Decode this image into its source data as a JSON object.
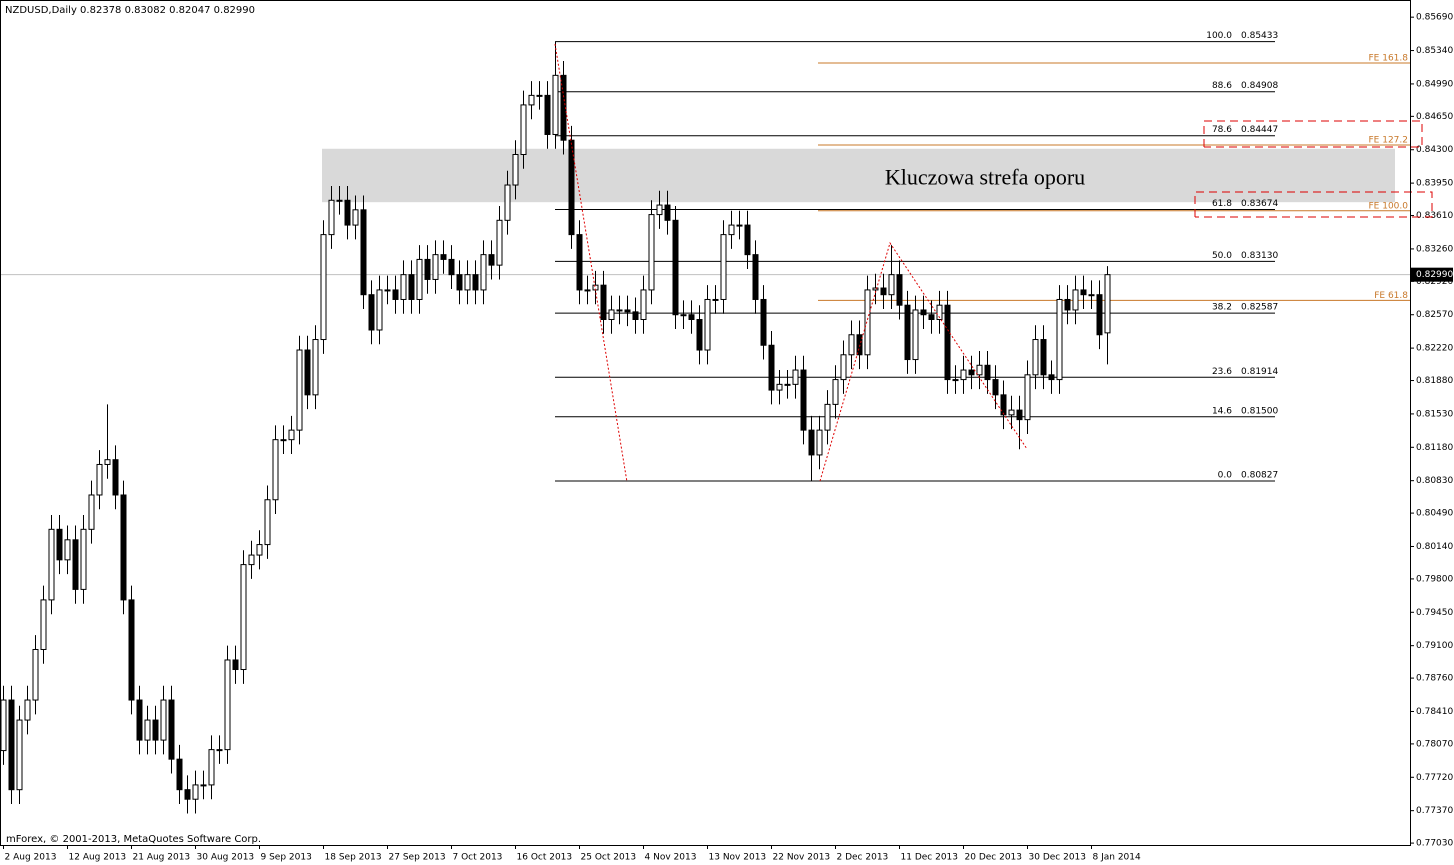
{
  "chart_data": {
    "type": "candlestick",
    "title": "NZDUSD,Daily  0.82378 0.83082 0.82047 0.82990",
    "copyright": "mForex, © 2001-2013, MetaQuotes Software Corp.",
    "up_color": "#ffffff",
    "down_color": "#000000",
    "outline_color": "#000000",
    "fib_color": "#000000",
    "fe_color": "#c8782a",
    "zone_color": "#d9d9d9",
    "xlim": [
      -0.4,
      175.9
    ],
    "ylim": [
      0.7701,
      0.8587
    ],
    "xticks": [
      {
        "value": 0,
        "label": "2 Aug 2013"
      },
      {
        "value": 8,
        "label": "12 Aug 2013"
      },
      {
        "value": 16,
        "label": "21 Aug 2013"
      },
      {
        "value": 24,
        "label": "30 Aug 2013"
      },
      {
        "value": 32,
        "label": "9 Sep 2013"
      },
      {
        "value": 40,
        "label": "18 Sep 2013"
      },
      {
        "value": 48,
        "label": "27 Sep 2013"
      },
      {
        "value": 56,
        "label": "7 Oct 2013"
      },
      {
        "value": 64,
        "label": "16 Oct 2013"
      },
      {
        "value": 72,
        "label": "25 Oct 2013"
      },
      {
        "value": 80,
        "label": "4 Nov 2013"
      },
      {
        "value": 88,
        "label": "13 Nov 2013"
      },
      {
        "value": 96,
        "label": "22 Nov 2013"
      },
      {
        "value": 104,
        "label": "2 Dec 2013"
      },
      {
        "value": 112,
        "label": "11 Dec 2013"
      },
      {
        "value": 120,
        "label": "20 Dec 2013"
      },
      {
        "value": 128,
        "label": "30 Dec 2013"
      },
      {
        "value": 136,
        "label": "8 Jan 2014"
      }
    ],
    "yticks": [
      {
        "value": 0.8569,
        "label": "0.85690"
      },
      {
        "value": 0.8534,
        "label": "0.85340"
      },
      {
        "value": 0.8499,
        "label": "0.84990"
      },
      {
        "value": 0.8465,
        "label": "0.84650"
      },
      {
        "value": 0.843,
        "label": "0.84300"
      },
      {
        "value": 0.8395,
        "label": "0.83950"
      },
      {
        "value": 0.8361,
        "label": "0.83610"
      },
      {
        "value": 0.8326,
        "label": "0.83260"
      },
      {
        "value": 0.8292,
        "label": "0.82920"
      },
      {
        "value": 0.8257,
        "label": "0.82570"
      },
      {
        "value": 0.8222,
        "label": "0.82220"
      },
      {
        "value": 0.8188,
        "label": "0.81880"
      },
      {
        "value": 0.8153,
        "label": "0.81530"
      },
      {
        "value": 0.8118,
        "label": "0.81180"
      },
      {
        "value": 0.8083,
        "label": "0.80830"
      },
      {
        "value": 0.8049,
        "label": "0.80490"
      },
      {
        "value": 0.8014,
        "label": "0.80140"
      },
      {
        "value": 0.798,
        "label": "0.79800"
      },
      {
        "value": 0.7945,
        "label": "0.79450"
      },
      {
        "value": 0.791,
        "label": "0.79100"
      },
      {
        "value": 0.7876,
        "label": "0.78760"
      },
      {
        "value": 0.7841,
        "label": "0.78410"
      },
      {
        "value": 0.7807,
        "label": "0.78070"
      },
      {
        "value": 0.7772,
        "label": "0.77720"
      },
      {
        "value": 0.7737,
        "label": "0.77370"
      },
      {
        "value": 0.7703,
        "label": "0.77030"
      }
    ],
    "current_price": {
      "value": 0.8299,
      "label": "0.82990"
    },
    "zone": {
      "label": "Kluczowa strefa oporu",
      "range": [
        0.8375,
        0.8431
      ]
    },
    "fib_levels": [
      {
        "level": "100.0",
        "value": 0.85433,
        "label": "0.85433"
      },
      {
        "level": "88.6",
        "value": 0.84908,
        "label": "0.84908"
      },
      {
        "level": "78.6",
        "value": 0.84447,
        "label": "0.84447"
      },
      {
        "level": "61.8",
        "value": 0.83674,
        "label": "0.83674"
      },
      {
        "level": "50.0",
        "value": 0.8313,
        "label": "0.83130"
      },
      {
        "level": "38.2",
        "value": 0.82587,
        "label": "0.82587"
      },
      {
        "level": "23.6",
        "value": 0.81914,
        "label": "0.81914"
      },
      {
        "level": "14.6",
        "value": 0.815,
        "label": "0.81500"
      },
      {
        "level": "0.0",
        "value": 0.80827,
        "label": "0.80827"
      }
    ],
    "fe_levels": [
      {
        "label": "FE 161.8",
        "value": 0.8521
      },
      {
        "label": "FE 127.2",
        "value": 0.8435
      },
      {
        "label": "FE 100.0",
        "value": 0.8366
      },
      {
        "label": "FE 61.8",
        "value": 0.8272
      }
    ],
    "open": [
      0.78,
      0.7853,
      0.7759,
      0.7832,
      0.7853,
      0.7906,
      0.7958,
      0.8032,
      0.8,
      0.8021,
      0.7969,
      0.8032,
      0.8068,
      0.81,
      0.8105,
      0.8068,
      0.7958,
      0.7853,
      0.7811,
      0.7832,
      0.7811,
      0.7853,
      0.7791,
      0.7759,
      0.7749,
      0.7764,
      0.7764,
      0.7801,
      0.7801,
      0.7895,
      0.7885,
      0.7995,
      0.8005,
      0.8016,
      0.8063,
      0.8126,
      0.8126,
      0.8136,
      0.822,
      0.8173,
      0.8231,
      0.8341,
      0.8377,
      0.8377,
      0.8351,
      0.8367,
      0.8278,
      0.8241,
      0.8283,
      0.8283,
      0.8273,
      0.8299,
      0.8273,
      0.8315,
      0.8294,
      0.832,
      0.8315,
      0.8299,
      0.8283,
      0.8299,
      0.8283,
      0.832,
      0.8309,
      0.8356,
      0.8393,
      0.8425,
      0.8477,
      0.8487,
      0.8487,
      0.8446,
      0.8508,
      0.844,
      0.8341,
      0.8283,
      0.8283,
      0.8288,
      0.8252,
      0.8262,
      0.8262,
      0.826,
      0.8252,
      0.8283,
      0.8362,
      0.8372,
      0.8356,
      0.8257,
      0.8257,
      0.8252,
      0.822,
      0.8273,
      0.8273,
      0.8341,
      0.8351,
      0.8351,
      0.832,
      0.8273,
      0.8225,
      0.8178,
      0.8184,
      0.8184,
      0.8199,
      0.8136,
      0.811,
      0.8136,
      0.8163,
      0.8189,
      0.8215,
      0.8236,
      0.8215,
      0.8283,
      0.8285,
      0.8278,
      0.8299,
      0.8267,
      0.821,
      0.8262,
      0.8257,
      0.8252,
      0.8267,
      0.8189,
      0.8189,
      0.8199,
      0.8194,
      0.8204,
      0.8189,
      0.8173,
      0.8152,
      0.8157,
      0.8147,
      0.8194,
      0.8231,
      0.8194,
      0.8189,
      0.8273,
      0.8262,
      0.8283,
      0.8278,
      0.8278,
      0.8238
    ],
    "high": [
      0.7868,
      0.7868,
      0.7847,
      0.7868,
      0.7921,
      0.7973,
      0.8047,
      0.8047,
      0.8036,
      0.8036,
      0.8047,
      0.8083,
      0.8115,
      0.8163,
      0.812,
      0.8083,
      0.7973,
      0.7868,
      0.7847,
      0.7847,
      0.7868,
      0.7868,
      0.7806,
      0.7774,
      0.7779,
      0.7779,
      0.7816,
      0.7816,
      0.791,
      0.791,
      0.801,
      0.802,
      0.8031,
      0.8078,
      0.8141,
      0.8141,
      0.8151,
      0.8235,
      0.8235,
      0.8246,
      0.8356,
      0.8392,
      0.8392,
      0.8392,
      0.8382,
      0.8382,
      0.8293,
      0.8298,
      0.8298,
      0.8298,
      0.8314,
      0.8314,
      0.833,
      0.833,
      0.8335,
      0.8335,
      0.833,
      0.8314,
      0.8314,
      0.8314,
      0.8335,
      0.8335,
      0.8371,
      0.8408,
      0.844,
      0.8492,
      0.8502,
      0.8502,
      0.8502,
      0.8543,
      0.8523,
      0.8455,
      0.8356,
      0.8298,
      0.8303,
      0.8303,
      0.8277,
      0.8277,
      0.8277,
      0.8275,
      0.8298,
      0.8377,
      0.8387,
      0.8387,
      0.8371,
      0.8272,
      0.8272,
      0.8267,
      0.8288,
      0.8288,
      0.8356,
      0.8366,
      0.8366,
      0.8366,
      0.8335,
      0.8288,
      0.824,
      0.8199,
      0.8199,
      0.8214,
      0.8214,
      0.8151,
      0.8151,
      0.8178,
      0.8204,
      0.823,
      0.8251,
      0.8251,
      0.8298,
      0.83,
      0.83,
      0.833,
      0.8314,
      0.8282,
      0.8277,
      0.8277,
      0.8272,
      0.8282,
      0.8282,
      0.8204,
      0.8214,
      0.8214,
      0.8219,
      0.8219,
      0.8204,
      0.8188,
      0.8172,
      0.8172,
      0.8209,
      0.8246,
      0.8246,
      0.8209,
      0.8288,
      0.8288,
      0.8298,
      0.8298,
      0.8293,
      0.8293,
      0.8308
    ],
    "low": [
      0.7785,
      0.7744,
      0.7744,
      0.7817,
      0.7838,
      0.7891,
      0.7943,
      0.7985,
      0.7985,
      0.7954,
      0.7954,
      0.8017,
      0.8053,
      0.8085,
      0.8053,
      0.7943,
      0.7838,
      0.7796,
      0.7796,
      0.7796,
      0.7796,
      0.7776,
      0.7744,
      0.7734,
      0.7734,
      0.7749,
      0.7749,
      0.7786,
      0.7786,
      0.787,
      0.787,
      0.798,
      0.799,
      0.8001,
      0.8048,
      0.8111,
      0.8111,
      0.8121,
      0.8158,
      0.8158,
      0.8216,
      0.8326,
      0.8362,
      0.8336,
      0.8336,
      0.8263,
      0.8226,
      0.8226,
      0.8268,
      0.8258,
      0.8258,
      0.8258,
      0.8258,
      0.8279,
      0.8279,
      0.83,
      0.8284,
      0.8268,
      0.8268,
      0.8268,
      0.8268,
      0.8294,
      0.8294,
      0.8341,
      0.8378,
      0.841,
      0.8462,
      0.8472,
      0.8431,
      0.8431,
      0.8425,
      0.8326,
      0.8268,
      0.8268,
      0.8268,
      0.8237,
      0.8237,
      0.8247,
      0.8245,
      0.8237,
      0.8237,
      0.8268,
      0.8347,
      0.8341,
      0.8242,
      0.8242,
      0.8237,
      0.8205,
      0.8205,
      0.8258,
      0.8258,
      0.8326,
      0.8336,
      0.8305,
      0.8258,
      0.821,
      0.8163,
      0.8163,
      0.8169,
      0.8169,
      0.8121,
      0.8083,
      0.8095,
      0.8121,
      0.8148,
      0.8174,
      0.82,
      0.82,
      0.82,
      0.8268,
      0.8263,
      0.8263,
      0.8252,
      0.8195,
      0.8195,
      0.8242,
      0.8237,
      0.8237,
      0.8174,
      0.8174,
      0.8174,
      0.8179,
      0.8179,
      0.8174,
      0.8158,
      0.8137,
      0.8137,
      0.8116,
      0.8132,
      0.8179,
      0.8179,
      0.8174,
      0.8174,
      0.8247,
      0.8247,
      0.8263,
      0.8263,
      0.8221,
      0.8205
    ],
    "close": [
      0.7853,
      0.7759,
      0.7832,
      0.7853,
      0.7906,
      0.7958,
      0.8032,
      0.8,
      0.8021,
      0.7969,
      0.8032,
      0.8068,
      0.81,
      0.8105,
      0.8068,
      0.7958,
      0.7853,
      0.7811,
      0.7832,
      0.7811,
      0.7853,
      0.7791,
      0.7759,
      0.7749,
      0.7764,
      0.7764,
      0.7801,
      0.7801,
      0.7895,
      0.7885,
      0.7995,
      0.8005,
      0.8016,
      0.8063,
      0.8126,
      0.8126,
      0.8136,
      0.822,
      0.8173,
      0.8231,
      0.8341,
      0.8377,
      0.8377,
      0.8351,
      0.8367,
      0.8278,
      0.8241,
      0.8283,
      0.8283,
      0.8273,
      0.8299,
      0.8273,
      0.8315,
      0.8294,
      0.832,
      0.8315,
      0.8299,
      0.8283,
      0.8299,
      0.8283,
      0.832,
      0.8309,
      0.8356,
      0.8393,
      0.8425,
      0.8477,
      0.8487,
      0.8487,
      0.8446,
      0.8508,
      0.844,
      0.8341,
      0.8283,
      0.8283,
      0.8288,
      0.8252,
      0.8262,
      0.8262,
      0.826,
      0.8252,
      0.8283,
      0.8362,
      0.8372,
      0.8356,
      0.8257,
      0.8257,
      0.8252,
      0.822,
      0.8273,
      0.8273,
      0.8341,
      0.8351,
      0.8351,
      0.832,
      0.8273,
      0.8225,
      0.8178,
      0.8184,
      0.8184,
      0.8199,
      0.8136,
      0.811,
      0.8136,
      0.8163,
      0.8189,
      0.8215,
      0.8236,
      0.8215,
      0.8283,
      0.8285,
      0.8278,
      0.8299,
      0.8267,
      0.821,
      0.8262,
      0.8257,
      0.8252,
      0.8267,
      0.8189,
      0.8189,
      0.8199,
      0.8194,
      0.8204,
      0.8189,
      0.8173,
      0.8152,
      0.8157,
      0.8147,
      0.8194,
      0.8231,
      0.8194,
      0.8189,
      0.8273,
      0.8262,
      0.8283,
      0.8278,
      0.8278,
      0.8236,
      0.8299
    ]
  }
}
